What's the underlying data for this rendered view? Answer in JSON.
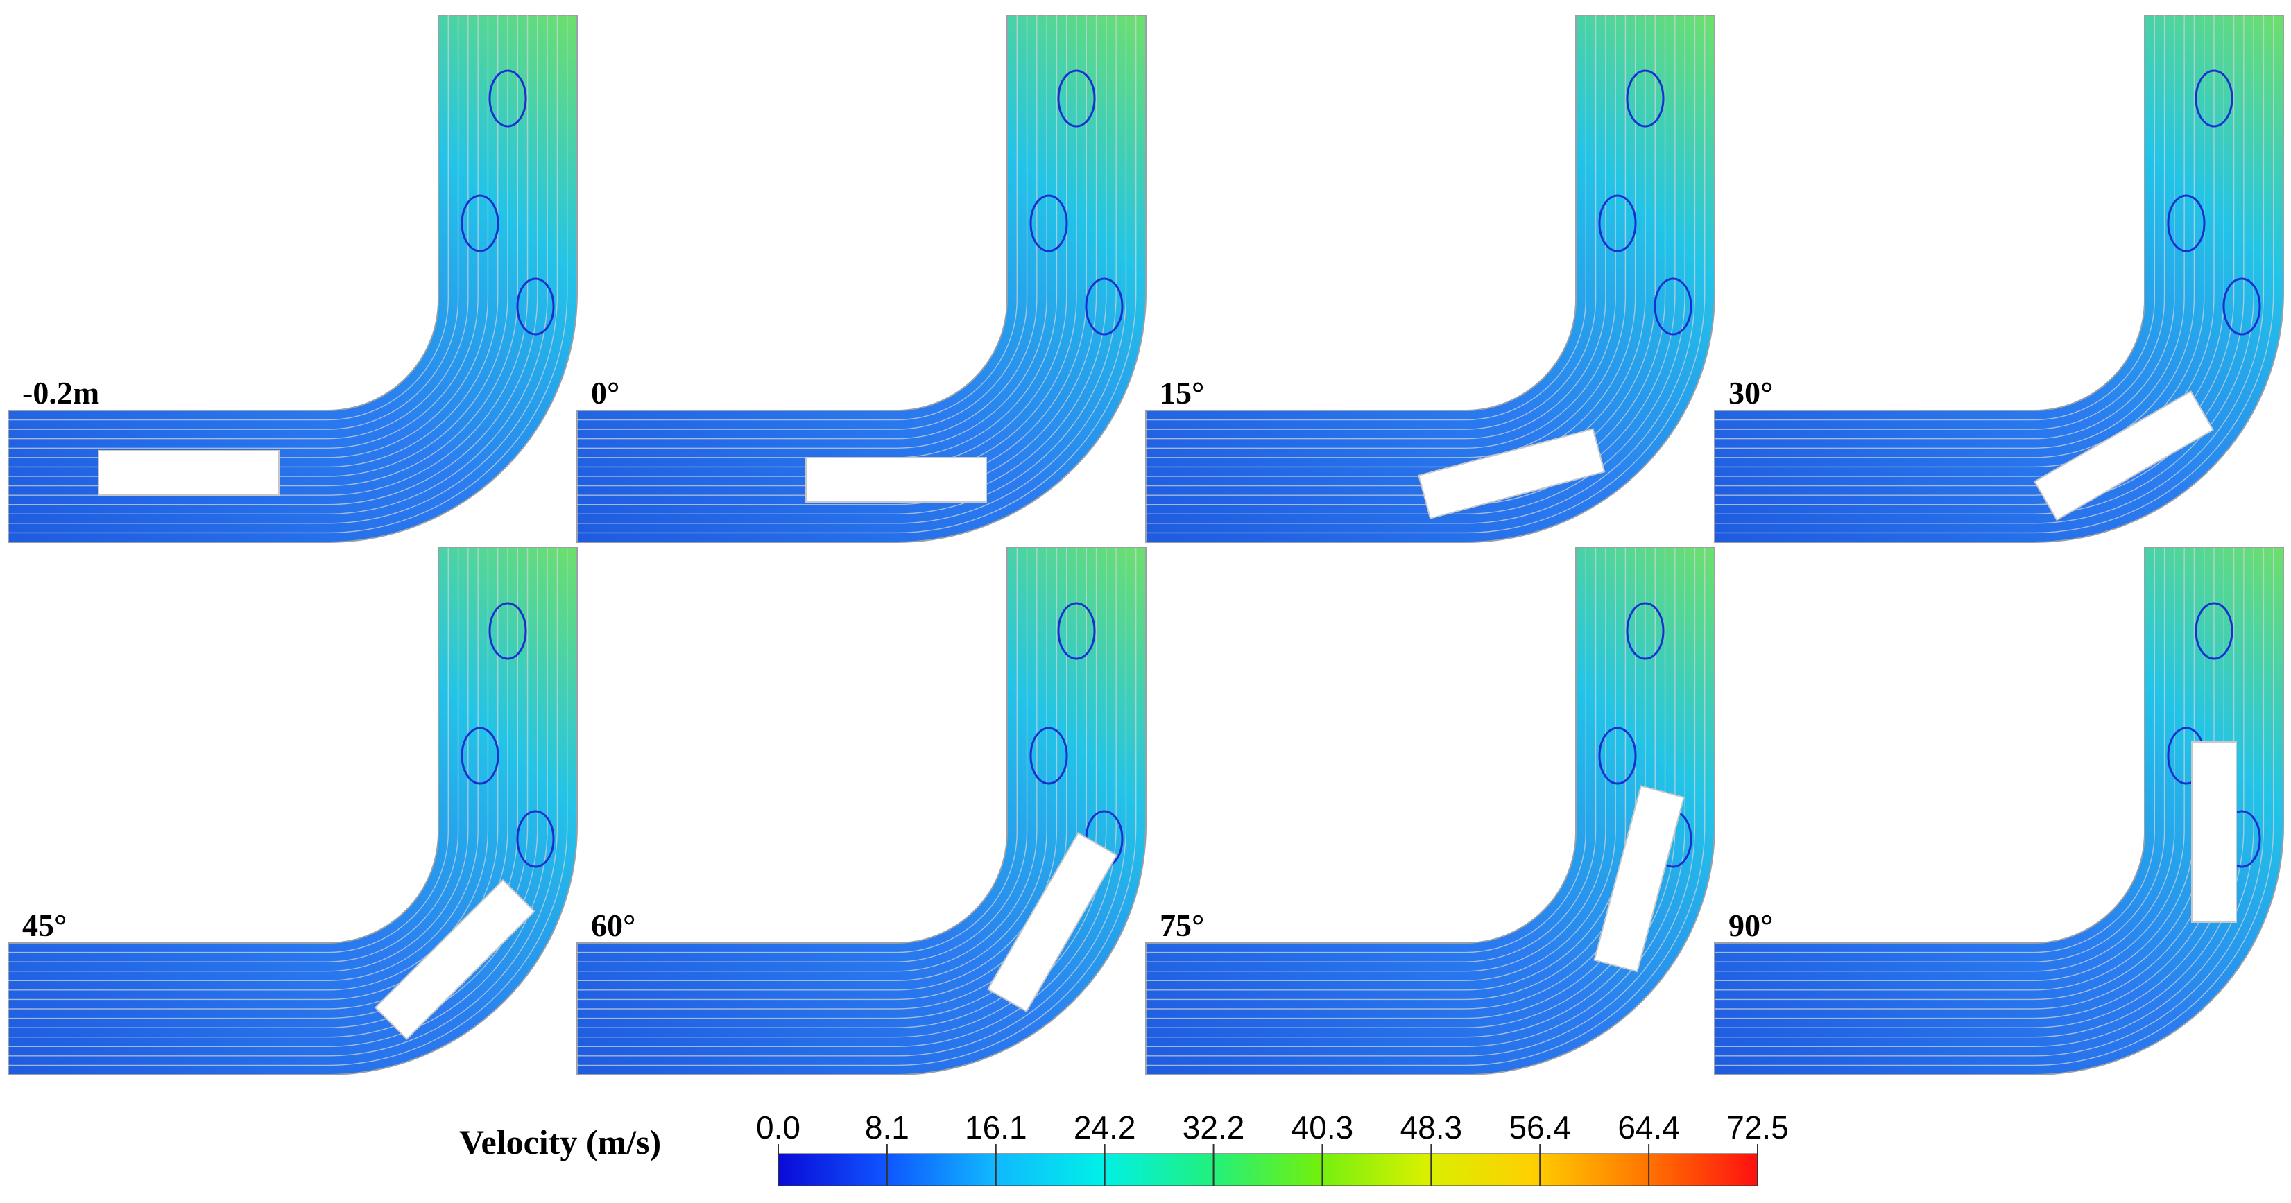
{
  "panels": [
    {
      "label": "-0.2m",
      "angle": null
    },
    {
      "label": "0°",
      "angle": 0
    },
    {
      "label": "15°",
      "angle": 15
    },
    {
      "label": "30°",
      "angle": 30
    },
    {
      "label": "45°",
      "angle": 45
    },
    {
      "label": "60°",
      "angle": 60
    },
    {
      "label": "75°",
      "angle": 75
    },
    {
      "label": "90°",
      "angle": 90
    }
  ],
  "colorbar": {
    "title": "Velocity (m/s)",
    "ticks": [
      "0.0",
      "8.1",
      "16.1",
      "24.2",
      "32.2",
      "40.3",
      "48.3",
      "56.4",
      "64.4",
      "72.5"
    ],
    "colors": [
      "#1010e0",
      "#1060ff",
      "#10c0ff",
      "#00f0e0",
      "#30f060",
      "#80f000",
      "#e0f000",
      "#ffc000",
      "#ff7000",
      "#ff1000"
    ]
  }
}
